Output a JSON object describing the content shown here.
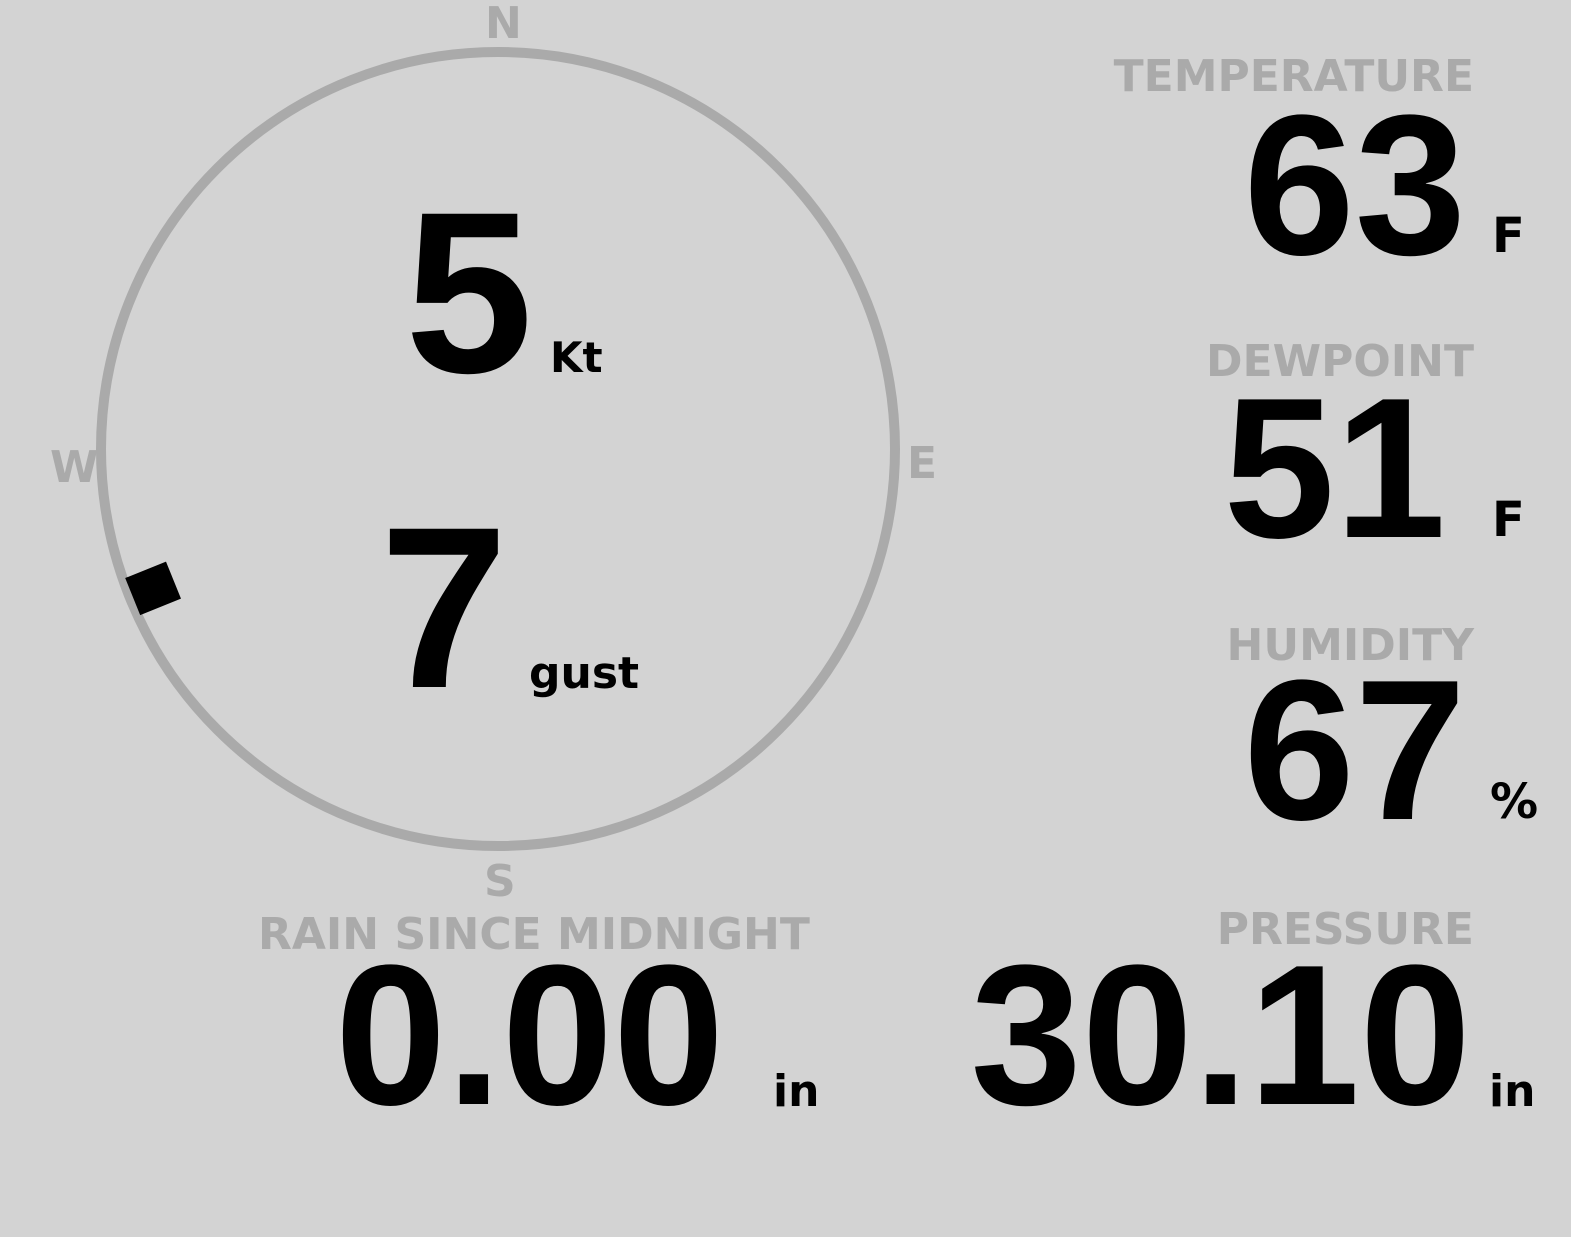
{
  "compass": {
    "north": "N",
    "south": "S",
    "east": "E",
    "west": "W",
    "wind_direction_deg": 248,
    "ring_color": "#aaaaaa",
    "marker_color": "#000000"
  },
  "wind": {
    "speed": "5",
    "speed_unit": "Kt",
    "gust": "7",
    "gust_unit": "gust"
  },
  "temperature": {
    "label": "TEMPERATURE",
    "value": "63",
    "unit": "F"
  },
  "dewpoint": {
    "label": "DEWPOINT",
    "value": "51",
    "unit": "F"
  },
  "humidity": {
    "label": "HUMIDITY",
    "value": "67",
    "unit": "%"
  },
  "rain": {
    "label": "RAIN SINCE MIDNIGHT",
    "value": "0.00",
    "unit": "in"
  },
  "pressure": {
    "label": "PRESSURE",
    "value": "30.10",
    "unit": "in"
  },
  "colors": {
    "background": "#d3d3d3",
    "label": "#aaaaaa",
    "value": "#000000"
  }
}
